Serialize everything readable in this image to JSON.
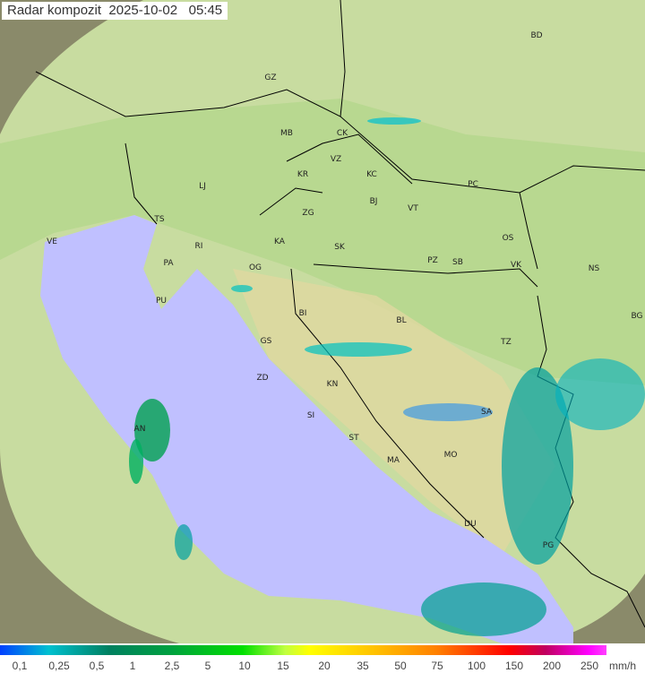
{
  "title": "Radar kompozit  2025-10-02   05:45",
  "colors": {
    "sea": "#c0c0ff",
    "land": "#b8d890",
    "coverage_outside": "#8a8a6a",
    "border": "#000000"
  },
  "cities": [
    "GZ",
    "BD",
    "MB",
    "CK",
    "VZ",
    "KR",
    "KC",
    "PC",
    "LJ",
    "ZG",
    "BJ",
    "VT",
    "TS",
    "VE",
    "RI",
    "KA",
    "SK",
    "OS",
    "PA",
    "OG",
    "PZ",
    "SB",
    "VK",
    "NS",
    "PU",
    "BG",
    "BI",
    "BL",
    "GS",
    "TZ",
    "ZD",
    "KN",
    "SA",
    "SI",
    "AN",
    "ST",
    "MA",
    "MO",
    "DU",
    "PG"
  ],
  "legend": {
    "ticks": [
      "0,1",
      "0,25",
      "0,5",
      "1",
      "2,5",
      "5",
      "10",
      "15",
      "20",
      "35",
      "50",
      "75",
      "100",
      "150",
      "200",
      "250"
    ],
    "unit": "mm/h"
  }
}
